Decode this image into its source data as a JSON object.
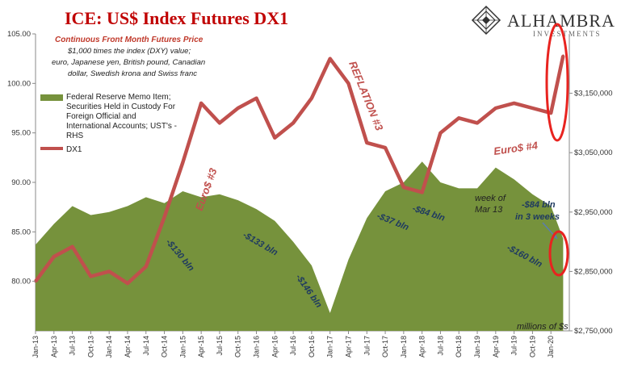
{
  "header": {
    "title_ice": "ICE",
    "title_rest": ": US$ Index Futures DX1",
    "subtitle": "Continuous  Front Month Futures Price",
    "note_lines": [
      "$1,000 times the index (DXY) value;",
      "euro, Japanese yen, British pound, Canadian",
      "dollar, Swedish krona and Swiss franc"
    ]
  },
  "logo": {
    "name": "ALHAMBRA",
    "tagline": "INVESTMENTS"
  },
  "legend": {
    "area_label_lines": [
      "Federal Reserve Memo Item;",
      "Securities Held in Custody For",
      "Foreign Official and",
      "International Accounts; UST's -",
      "RHS"
    ],
    "line_label": "DX1"
  },
  "annotations": {
    "euro3": "Euro$ #3",
    "reflation3": "REFLATION #3",
    "euro4": "Euro$ #4",
    "a130": "-$130 bln",
    "a133": "-$133 bln",
    "a146": "-$146 bln",
    "a37": "-$37 bln",
    "a84": "-$84 bln",
    "a160": "-$160 bln",
    "week_line1": "week of",
    "week_line2": "Mar 13",
    "three_weeks_line1": "-$84 bln",
    "three_weeks_line2": "in 3 weeks",
    "units": "millions of $s"
  },
  "colors": {
    "title_red": "#c00000",
    "line": "#c0504d",
    "area": "#76923c",
    "circle": "#e8231f",
    "annotation_blue": "#1f3a60"
  },
  "chart_data": {
    "type": "line",
    "x": [
      "2013-01",
      "2013-04",
      "2013-07",
      "2013-10",
      "2014-01",
      "2014-04",
      "2014-07",
      "2014-10",
      "2015-01",
      "2015-04",
      "2015-07",
      "2015-10",
      "2016-01",
      "2016-04",
      "2016-07",
      "2016-10",
      "2017-01",
      "2017-04",
      "2017-07",
      "2017-10",
      "2018-01",
      "2018-04",
      "2018-07",
      "2018-10",
      "2019-01",
      "2019-04",
      "2019-07",
      "2019-10",
      "2020-01",
      "2020-03"
    ],
    "x_tick_labels": [
      "Jan-13",
      "Apr-13",
      "Jul-13",
      "Oct-13",
      "Jan-14",
      "Apr-14",
      "Jul-14",
      "Oct-14",
      "Jan-15",
      "Apr-15",
      "Jul-15",
      "Oct-15",
      "Jan-16",
      "Apr-16",
      "Jul-16",
      "Oct-16",
      "Jan-17",
      "Apr-17",
      "Jul-17",
      "Oct-17",
      "Jan-18",
      "Apr-18",
      "Jul-18",
      "Oct-18",
      "Jan-19",
      "Apr-19",
      "Jul-19",
      "Oct-19",
      "Jan-20"
    ],
    "series": [
      {
        "name": "DX1",
        "axis": "left",
        "values": [
          80.0,
          82.5,
          83.5,
          80.5,
          81.0,
          79.8,
          81.5,
          86.5,
          92.0,
          98.0,
          96.0,
          97.5,
          98.5,
          94.5,
          96.0,
          98.5,
          102.5,
          100.0,
          94.0,
          93.5,
          89.5,
          89.0,
          95.0,
          96.5,
          96.0,
          97.5,
          98.0,
          97.5,
          97.0,
          102.8
        ]
      },
      {
        "name": "Federal Reserve Memo Item; Securities Held in Custody For Foreign Official and International Accounts; UST's - RHS",
        "axis": "right",
        "values": [
          2895000,
          2930000,
          2960000,
          2945000,
          2950000,
          2960000,
          2975000,
          2965000,
          2985000,
          2975000,
          2980000,
          2970000,
          2955000,
          2935000,
          2900000,
          2860000,
          2780000,
          2870000,
          2940000,
          2985000,
          3000000,
          3035000,
          3000000,
          2990000,
          2990000,
          3025000,
          3005000,
          2980000,
          2960000,
          2905000
        ]
      }
    ],
    "y_left": {
      "ticks": [
        "80.00",
        "85.00",
        "90.00",
        "95.00",
        "100.00",
        "105.00"
      ],
      "range": [
        75,
        105
      ]
    },
    "y_right": {
      "ticks": [
        "$2,750,000",
        "$2,850,000",
        "$2,950,000",
        "$3,050,000",
        "$3,150,000"
      ],
      "range": [
        2750000,
        3250000
      ]
    }
  }
}
